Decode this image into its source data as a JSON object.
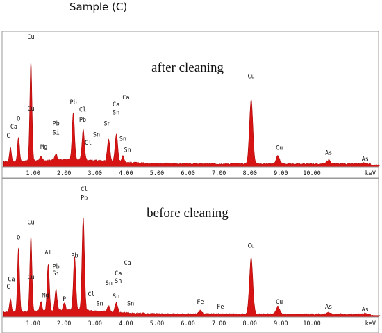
{
  "header": {
    "title": "Sample (C)"
  },
  "chart_data": [
    {
      "type": "area",
      "title": "after cleaning",
      "xlabel": "keV",
      "xlim": [
        0,
        12.2
      ],
      "ylim": [
        0,
        100
      ],
      "x_ticks": [
        "1.00",
        "2.00",
        "3.00",
        "4.00",
        "5.00",
        "6.00",
        "7.00",
        "8.00",
        "9.00",
        "10.00"
      ],
      "unit": "keV",
      "peaks": [
        {
          "label": "C",
          "x": 0.27,
          "y": 14
        },
        {
          "label": "O",
          "x": 0.53,
          "y": 24
        },
        {
          "label": "Cu",
          "x": 0.93,
          "y": 100
        },
        {
          "label": "Mg",
          "x": 1.25,
          "y": 4
        },
        {
          "label": "Si",
          "x": 1.74,
          "y": 6
        },
        {
          "label": "Pb",
          "x": 2.3,
          "y": 47
        },
        {
          "label": "Cl",
          "x": 2.62,
          "y": 30
        },
        {
          "label": "Sn",
          "x": 3.44,
          "y": 22
        },
        {
          "label": "Ca",
          "x": 3.69,
          "y": 28
        },
        {
          "label": "Sn",
          "x": 3.9,
          "y": 6
        },
        {
          "label": "Cu",
          "x": 8.04,
          "y": 64
        },
        {
          "label": "Cu",
          "x": 8.9,
          "y": 8
        },
        {
          "label": "As",
          "x": 10.54,
          "y": 4
        },
        {
          "label": "As",
          "x": 11.72,
          "y": 1
        }
      ],
      "labels": [
        {
          "text": "Cu",
          "x": 0.93,
          "y": 127
        },
        {
          "text": "Cu",
          "x": 0.93,
          "y": 56
        },
        {
          "text": "Ca",
          "x": 0.38,
          "y": 38
        },
        {
          "text": "O",
          "x": 0.53,
          "y": 46
        },
        {
          "text": "C",
          "x": 0.2,
          "y": 29
        },
        {
          "text": "Mg",
          "x": 1.35,
          "y": 18
        },
        {
          "text": "Si",
          "x": 1.74,
          "y": 32
        },
        {
          "text": "Pb",
          "x": 1.74,
          "y": 41
        },
        {
          "text": "Pb",
          "x": 2.3,
          "y": 62
        },
        {
          "text": "Cl",
          "x": 2.6,
          "y": 55
        },
        {
          "text": "Pb",
          "x": 2.6,
          "y": 45
        },
        {
          "text": "Cl",
          "x": 2.78,
          "y": 22
        },
        {
          "text": "Sn",
          "x": 3.05,
          "y": 30
        },
        {
          "text": "Sn",
          "x": 3.4,
          "y": 41
        },
        {
          "text": "Sn",
          "x": 3.68,
          "y": 52
        },
        {
          "text": "Ca",
          "x": 3.68,
          "y": 60
        },
        {
          "text": "Ca",
          "x": 4.0,
          "y": 67
        },
        {
          "text": "Sn",
          "x": 3.9,
          "y": 26
        },
        {
          "text": "Sn",
          "x": 4.05,
          "y": 15
        },
        {
          "text": "Cu",
          "x": 8.04,
          "y": 88
        },
        {
          "text": "Cu",
          "x": 8.95,
          "y": 17
        },
        {
          "text": "As",
          "x": 10.54,
          "y": 12
        },
        {
          "text": "As",
          "x": 11.72,
          "y": 6
        }
      ]
    },
    {
      "type": "area",
      "title": "before cleaning",
      "xlabel": "keV",
      "xlim": [
        0,
        12.2
      ],
      "ylim": [
        0,
        100
      ],
      "x_ticks": [
        "1.00",
        "2.00",
        "3.00",
        "4.00",
        "5.00",
        "6.00",
        "7.00",
        "8.00",
        "9.00",
        "10.00"
      ],
      "unit": "keV",
      "peaks": [
        {
          "label": "C",
          "x": 0.27,
          "y": 14
        },
        {
          "label": "O",
          "x": 0.53,
          "y": 68
        },
        {
          "label": "Cu",
          "x": 0.93,
          "y": 80
        },
        {
          "label": "Mg",
          "x": 1.25,
          "y": 10
        },
        {
          "label": "Al",
          "x": 1.49,
          "y": 50
        },
        {
          "label": "Si",
          "x": 1.74,
          "y": 22
        },
        {
          "label": "P",
          "x": 2.01,
          "y": 8
        },
        {
          "label": "Pb",
          "x": 2.34,
          "y": 58
        },
        {
          "label": "Cl",
          "x": 2.62,
          "y": 100
        },
        {
          "label": "Sn",
          "x": 3.44,
          "y": 6
        },
        {
          "label": "Ca",
          "x": 3.69,
          "y": 10
        },
        {
          "label": "Fe",
          "x": 6.4,
          "y": 4
        },
        {
          "label": "Cu",
          "x": 8.04,
          "y": 60
        },
        {
          "label": "Cu",
          "x": 8.9,
          "y": 8
        },
        {
          "label": "As",
          "x": 10.54,
          "y": 2
        },
        {
          "label": "As",
          "x": 11.72,
          "y": 1
        }
      ],
      "labels": [
        {
          "text": "Cl",
          "x": 2.65,
          "y": 133
        },
        {
          "text": "Pb",
          "x": 2.65,
          "y": 124
        },
        {
          "text": "Cu",
          "x": 0.93,
          "y": 98
        },
        {
          "text": "O",
          "x": 0.53,
          "y": 82
        },
        {
          "text": "Al",
          "x": 1.49,
          "y": 66
        },
        {
          "text": "Pb",
          "x": 2.34,
          "y": 63
        },
        {
          "text": "Pb",
          "x": 1.74,
          "y": 51
        },
        {
          "text": "Si",
          "x": 1.74,
          "y": 44
        },
        {
          "text": "Cu",
          "x": 0.93,
          "y": 40
        },
        {
          "text": "Ca",
          "x": 0.3,
          "y": 38
        },
        {
          "text": "C",
          "x": 0.2,
          "y": 30
        },
        {
          "text": "Mg",
          "x": 1.4,
          "y": 21
        },
        {
          "text": "P",
          "x": 2.01,
          "y": 17
        },
        {
          "text": "Cl",
          "x": 2.88,
          "y": 22
        },
        {
          "text": "Sn",
          "x": 3.15,
          "y": 12
        },
        {
          "text": "Sn",
          "x": 3.45,
          "y": 34
        },
        {
          "text": "Ca",
          "x": 3.75,
          "y": 44
        },
        {
          "text": "Sn",
          "x": 3.75,
          "y": 36
        },
        {
          "text": "Sn",
          "x": 3.68,
          "y": 20
        },
        {
          "text": "Ca",
          "x": 4.05,
          "y": 55
        },
        {
          "text": "Sn",
          "x": 4.15,
          "y": 12
        },
        {
          "text": "Fe",
          "x": 6.4,
          "y": 14
        },
        {
          "text": "Fe",
          "x": 7.05,
          "y": 9
        },
        {
          "text": "Cu",
          "x": 8.04,
          "y": 73
        },
        {
          "text": "Cu",
          "x": 8.95,
          "y": 14
        },
        {
          "text": "As",
          "x": 10.54,
          "y": 9
        },
        {
          "text": "As",
          "x": 11.72,
          "y": 6
        }
      ]
    }
  ]
}
